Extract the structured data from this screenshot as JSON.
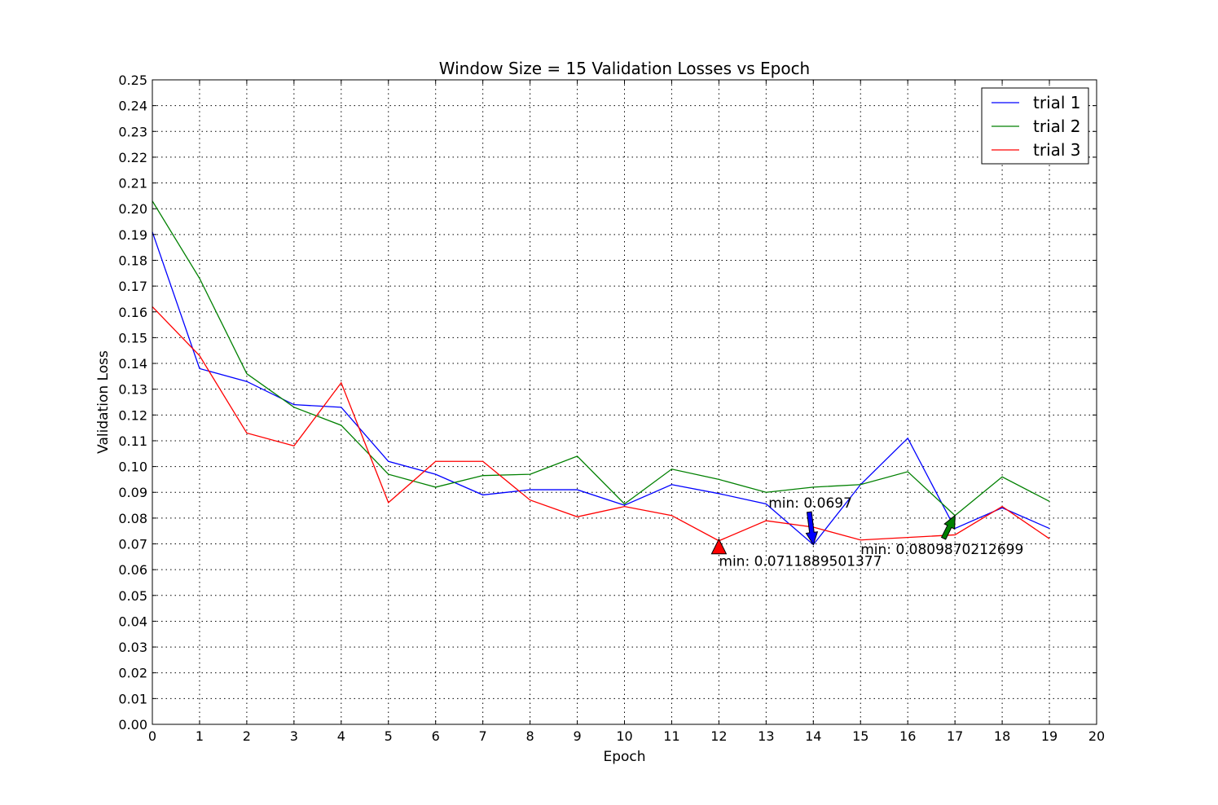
{
  "chart_data": {
    "type": "line",
    "title": "Window Size = 15 Validation Losses vs Epoch",
    "xlabel": "Epoch",
    "ylabel": "Validation Loss",
    "xlim": [
      0,
      20
    ],
    "ylim": [
      0,
      0.25
    ],
    "grid": true,
    "legend_position": "top-right",
    "x_ticks": [
      "0",
      "1",
      "2",
      "3",
      "4",
      "5",
      "6",
      "7",
      "8",
      "9",
      "10",
      "11",
      "12",
      "13",
      "14",
      "15",
      "16",
      "17",
      "18",
      "19",
      "20"
    ],
    "y_ticks": [
      "0.00",
      "0.01",
      "0.02",
      "0.03",
      "0.04",
      "0.05",
      "0.06",
      "0.07",
      "0.08",
      "0.09",
      "0.10",
      "0.11",
      "0.12",
      "0.13",
      "0.14",
      "0.15",
      "0.16",
      "0.17",
      "0.18",
      "0.19",
      "0.20",
      "0.21",
      "0.22",
      "0.23",
      "0.24",
      "0.25"
    ],
    "x": [
      0,
      1,
      2,
      3,
      4,
      5,
      6,
      7,
      8,
      9,
      10,
      11,
      12,
      13,
      14,
      15,
      16,
      17,
      18,
      19
    ],
    "series": [
      {
        "name": "trial 1",
        "color": "#0000ff",
        "values": [
          0.191,
          0.138,
          0.133,
          0.124,
          0.123,
          0.102,
          0.097,
          0.089,
          0.091,
          0.091,
          0.085,
          0.093,
          0.0895,
          0.0855,
          0.0697,
          0.093,
          0.111,
          0.076,
          0.084,
          0.076
        ]
      },
      {
        "name": "trial 2",
        "color": "#008000",
        "values": [
          0.203,
          0.173,
          0.136,
          0.123,
          0.116,
          0.097,
          0.092,
          0.0965,
          0.097,
          0.104,
          0.0855,
          0.099,
          0.095,
          0.09,
          0.092,
          0.093,
          0.098,
          0.081,
          0.096,
          0.0865
        ]
      },
      {
        "name": "trial 3",
        "color": "#ff0000",
        "values": [
          0.162,
          0.143,
          0.113,
          0.108,
          0.1325,
          0.086,
          0.102,
          0.102,
          0.087,
          0.0805,
          0.0845,
          0.081,
          0.0712,
          0.079,
          0.0765,
          0.0715,
          0.0725,
          0.0735,
          0.0845,
          0.072
        ]
      }
    ],
    "annotations": [
      {
        "text": "min: 0.0697",
        "color": "#0000ff",
        "x": 14,
        "y": 0.0697,
        "text_x": 13.05,
        "text_y": 0.084,
        "anchor": "start"
      },
      {
        "text": "min: 0.0711889501377",
        "color": "#ff0000",
        "x": 12,
        "y": 0.0712,
        "text_x": 12.0,
        "text_y": 0.0615,
        "anchor": "start"
      },
      {
        "text": "min: 0.0809870212699",
        "color": "#008000",
        "x": 17,
        "y": 0.081,
        "text_x": 15.0,
        "text_y": 0.066,
        "anchor": "start"
      }
    ]
  }
}
